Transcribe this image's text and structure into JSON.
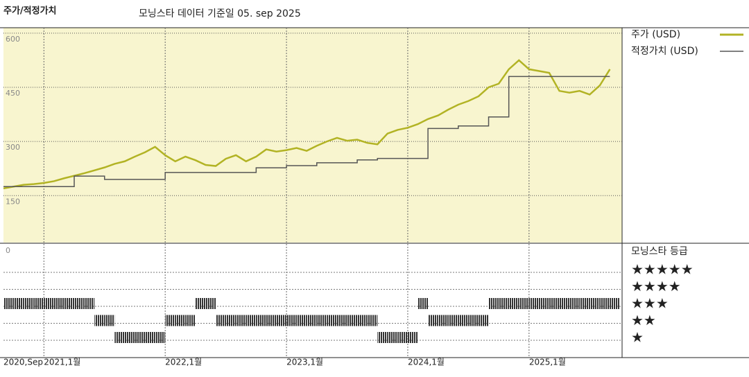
{
  "chart_data": {
    "type": "line",
    "title": "주가/적정가치",
    "subtitle": "모닝스타 데이터 기준일 05. sep 2025",
    "x": [
      "2020-09",
      "2020-10",
      "2020-11",
      "2020-12",
      "2021-01",
      "2021-02",
      "2021-03",
      "2021-04",
      "2021-05",
      "2021-06",
      "2021-07",
      "2021-08",
      "2021-09",
      "2021-10",
      "2021-11",
      "2021-12",
      "2022-01",
      "2022-02",
      "2022-03",
      "2022-04",
      "2022-05",
      "2022-06",
      "2022-07",
      "2022-08",
      "2022-09",
      "2022-10",
      "2022-11",
      "2022-12",
      "2023-01",
      "2023-02",
      "2023-03",
      "2023-04",
      "2023-05",
      "2023-06",
      "2023-07",
      "2023-08",
      "2023-09",
      "2023-10",
      "2023-11",
      "2023-12",
      "2024-01",
      "2024-02",
      "2024-03",
      "2024-04",
      "2024-05",
      "2024-06",
      "2024-07",
      "2024-08",
      "2024-09",
      "2024-10",
      "2024-11",
      "2024-12",
      "2025-01",
      "2025-02",
      "2025-03",
      "2025-04",
      "2025-05",
      "2025-06",
      "2025-07",
      "2025-08",
      "2025-09"
    ],
    "xlim": [
      "2020-09",
      "2025-10"
    ],
    "xticks": [
      {
        "value": "2020-09",
        "label": "2020,Sep"
      },
      {
        "value": "2021-01",
        "label": "2021,1월"
      },
      {
        "value": "2022-01",
        "label": "2022,1월"
      },
      {
        "value": "2023-01",
        "label": "2023,1월"
      },
      {
        "value": "2024-01",
        "label": "2024,1월"
      },
      {
        "value": "2025-01",
        "label": "2025,1월"
      }
    ],
    "ylim": [
      20,
      615
    ],
    "yticks": [
      150,
      300,
      450,
      600
    ],
    "grid": true,
    "legend": "right",
    "series": [
      {
        "name": "주가 (USD)",
        "color": "#b2b324",
        "step": false,
        "values": [
          170,
          175,
          180,
          182,
          185,
          190,
          198,
          205,
          212,
          220,
          228,
          238,
          245,
          258,
          270,
          285,
          262,
          245,
          258,
          248,
          235,
          232,
          252,
          262,
          245,
          258,
          278,
          272,
          276,
          282,
          274,
          288,
          300,
          310,
          302,
          305,
          296,
          292,
          322,
          332,
          338,
          348,
          362,
          372,
          388,
          402,
          412,
          425,
          450,
          460,
          500,
          525,
          500,
          495,
          490,
          440,
          435,
          440,
          430,
          455,
          500
        ]
      },
      {
        "name": "적정가치 (USD)",
        "color": "#555555",
        "step": true,
        "values": [
          175,
          175,
          175,
          175,
          175,
          175,
          175,
          204,
          204,
          204,
          195,
          195,
          195,
          195,
          195,
          195,
          214,
          214,
          214,
          214,
          214,
          214,
          214,
          214,
          214,
          227,
          227,
          227,
          233,
          233,
          233,
          241,
          241,
          241,
          241,
          249,
          249,
          253,
          253,
          253,
          253,
          253,
          336,
          336,
          336,
          343,
          343,
          343,
          368,
          368,
          480,
          480,
          480,
          480,
          480,
          480,
          480,
          480,
          480,
          480,
          480
        ]
      }
    ],
    "rating": {
      "title": "모닝스타 등급",
      "corner_label": "0",
      "levels": [
        "★",
        "★★",
        "★★★",
        "★★★★",
        "★★★★★"
      ],
      "values": [
        3,
        3,
        3,
        3,
        3,
        3,
        3,
        3,
        3,
        2,
        2,
        1,
        1,
        1,
        1,
        1,
        2,
        2,
        2,
        3,
        3,
        2,
        2,
        2,
        2,
        2,
        2,
        2,
        2,
        2,
        2,
        2,
        2,
        2,
        2,
        2,
        2,
        1,
        1,
        1,
        1,
        3,
        2,
        2,
        2,
        2,
        2,
        2,
        3,
        3,
        3,
        3,
        3,
        3,
        3,
        3,
        3,
        3,
        3,
        3,
        3
      ]
    }
  }
}
